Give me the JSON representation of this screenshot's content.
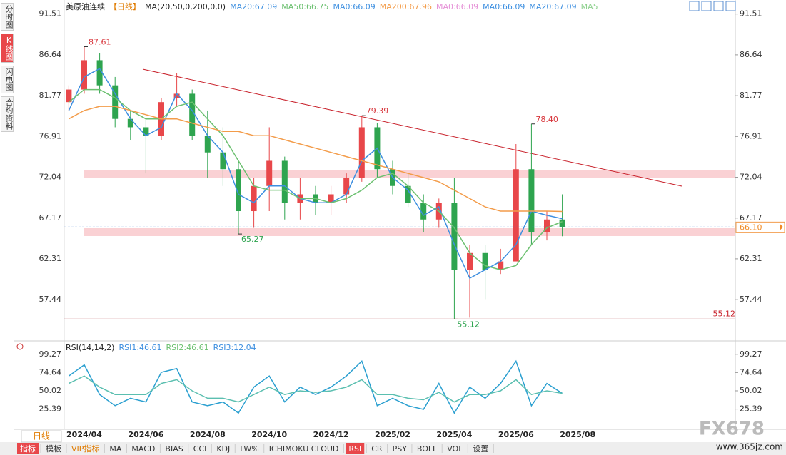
{
  "chart_data": [
    {
      "type": "candlestick",
      "title": "美原油连续",
      "period": "【日线】",
      "ma_params": "MA(20,50,0,200,0,0)",
      "indicator_labels": [
        {
          "label": "MA20:67.09",
          "color": "#3d8fe0"
        },
        {
          "label": "MA50:66.75",
          "color": "#6cc070"
        },
        {
          "label": "MA0:66.09",
          "color": "#3d8fe0"
        },
        {
          "label": "MA200:67.96",
          "color": "#f39c4a"
        },
        {
          "label": "MA0:66.09",
          "color": "#e58fd6"
        },
        {
          "label": "MA0:66.09",
          "color": "#3d8fe0"
        },
        {
          "label": "MA20:67.09",
          "color": "#3d8fe0"
        },
        {
          "label": "MA5",
          "color": "#8fd18f"
        }
      ],
      "up_color": "#e8474a",
      "down_color": "#2ea44f",
      "open": [
        81,
        82.5,
        86,
        83,
        79,
        78,
        77,
        81.5,
        82,
        77,
        75,
        73,
        68,
        71,
        74,
        69,
        70,
        69,
        70,
        72,
        78,
        73,
        71,
        69,
        67,
        69,
        61,
        63,
        61,
        62,
        73,
        65.5,
        67,
        null
      ],
      "high": [
        83,
        87.61,
        86.8,
        84,
        80,
        79,
        81.5,
        84.5,
        82.5,
        80,
        78,
        74,
        72,
        78,
        74.5,
        72,
        71,
        71,
        72.5,
        79.39,
        78.5,
        74,
        72.5,
        70,
        69.5,
        72,
        64,
        64,
        63.5,
        76,
        78.4,
        68,
        70,
        null
      ],
      "low": [
        80,
        82,
        82,
        78,
        76.5,
        72.5,
        76.5,
        80.5,
        76.5,
        72,
        71,
        65.27,
        66,
        68,
        67,
        67,
        67.5,
        67.5,
        69,
        71.5,
        72,
        70,
        68.5,
        65.5,
        66,
        55.12,
        55.3,
        57.5,
        60.5,
        62,
        64,
        64.5,
        65,
        null
      ],
      "close": [
        82.5,
        86,
        83,
        79,
        78,
        77,
        81,
        82,
        77,
        75,
        73,
        68,
        71,
        74,
        69,
        70,
        69,
        70,
        72,
        78,
        73,
        71,
        69,
        67,
        69,
        61,
        63,
        61,
        62,
        73,
        65.5,
        67,
        66.1,
        null
      ],
      "high_value_labels": [
        null,
        "87.61",
        null,
        null,
        null,
        null,
        null,
        null,
        null,
        null,
        null,
        null,
        null,
        null,
        null,
        null,
        null,
        null,
        null,
        "79.39",
        null,
        null,
        null,
        null,
        null,
        null,
        null,
        null,
        null,
        null,
        "78.40",
        null,
        null,
        null
      ],
      "low_value_labels": [
        null,
        null,
        null,
        null,
        null,
        null,
        null,
        null,
        null,
        null,
        null,
        "65.27",
        null,
        null,
        null,
        null,
        null,
        null,
        null,
        null,
        null,
        null,
        null,
        null,
        null,
        "55.12",
        null,
        null,
        null,
        null,
        null,
        null,
        null,
        null
      ],
      "series": [
        {
          "color": "#3d8fe0",
          "values": [
            80,
            84,
            85,
            82,
            79,
            77,
            78,
            82,
            80,
            77,
            75,
            70,
            69,
            71,
            71,
            69.5,
            69,
            69,
            70,
            74,
            75.5,
            72,
            70.5,
            67.5,
            68.5,
            64,
            60,
            61,
            62,
            64,
            68,
            67.5,
            67.09,
            null
          ]
        },
        {
          "color": "#6cc070",
          "values": [
            81,
            82.5,
            82.5,
            81.5,
            80,
            79,
            79,
            80.5,
            81,
            79,
            77,
            74,
            71,
            70.5,
            70.5,
            69.5,
            69.5,
            69,
            69.5,
            70.5,
            72,
            72.5,
            71,
            69,
            68,
            66,
            63,
            61.5,
            61,
            61.5,
            64,
            66,
            66.75,
            null
          ]
        },
        {
          "color": "#f39c4a",
          "values": [
            79,
            80,
            80.5,
            80.5,
            80,
            79.5,
            79,
            79,
            78.5,
            78,
            77.5,
            77.5,
            77,
            77,
            76.5,
            76,
            75.5,
            75,
            74.5,
            74,
            73.5,
            73,
            72.5,
            72,
            71.5,
            70.5,
            69.5,
            68.5,
            68,
            68,
            68,
            68,
            67.96,
            null
          ]
        }
      ],
      "last_price": {
        "value": 66.1,
        "label": "66.10"
      },
      "support_line": 55.12,
      "ylim": [
        53.2,
        92.5
      ],
      "yticks": [
        91.51,
        86.64,
        81.77,
        76.91,
        72.04,
        67.17,
        62.31,
        57.44
      ],
      "grid": false
    },
    {
      "type": "line",
      "title": "RSI(14,14,2)",
      "indicator_labels": [
        {
          "label": "RSI1:46.61",
          "color": "#3d8fe0"
        },
        {
          "label": "RSI2:46.61",
          "color": "#6cc070"
        },
        {
          "label": "RSI3:12.04",
          "color": "#3d8fe0"
        }
      ],
      "categories": [
        null,
        "2024/04",
        null,
        null,
        null,
        "2024/06",
        null,
        null,
        null,
        "2024/08",
        null,
        null,
        null,
        "2024/10",
        null,
        null,
        null,
        "2024/12",
        null,
        null,
        null,
        "2025/02",
        null,
        null,
        null,
        "2025/04",
        null,
        null,
        null,
        "2025/06",
        null,
        null,
        null,
        "2025/08"
      ],
      "series": [
        {
          "color": "#2a9fd0",
          "values": [
            70,
            85,
            45,
            30,
            40,
            35,
            75,
            80,
            35,
            30,
            35,
            20,
            55,
            70,
            35,
            55,
            45,
            55,
            70,
            90,
            30,
            40,
            30,
            25,
            60,
            20,
            55,
            40,
            60,
            90,
            30,
            60,
            46.61,
            null
          ]
        },
        {
          "color": "#5bbfb0",
          "values": [
            60,
            70,
            55,
            45,
            45,
            45,
            60,
            65,
            50,
            40,
            40,
            35,
            45,
            55,
            45,
            50,
            48,
            50,
            55,
            65,
            45,
            45,
            40,
            38,
            48,
            35,
            45,
            45,
            50,
            65,
            45,
            50,
            46.61,
            null
          ]
        }
      ],
      "ylim": [
        0,
        100
      ],
      "yticks": [
        99.27,
        74.64,
        50.02,
        25.39
      ],
      "grid": false
    }
  ],
  "ui": {
    "side_tabs": [
      "分时图",
      "K线图",
      "闪电图",
      "合约资料"
    ],
    "period_tab": "日线",
    "toolbar": [
      "指标",
      "模板",
      "VIP指标",
      "MA",
      "MACD",
      "BIAS",
      "CCI",
      "KDJ",
      "LW%",
      "ICHIMOKU CLOUD",
      "RSI",
      "CR",
      "PSY",
      "BOLL",
      "VOL",
      "设置"
    ],
    "watermark": "FX678",
    "site": "www.365jz.com"
  }
}
